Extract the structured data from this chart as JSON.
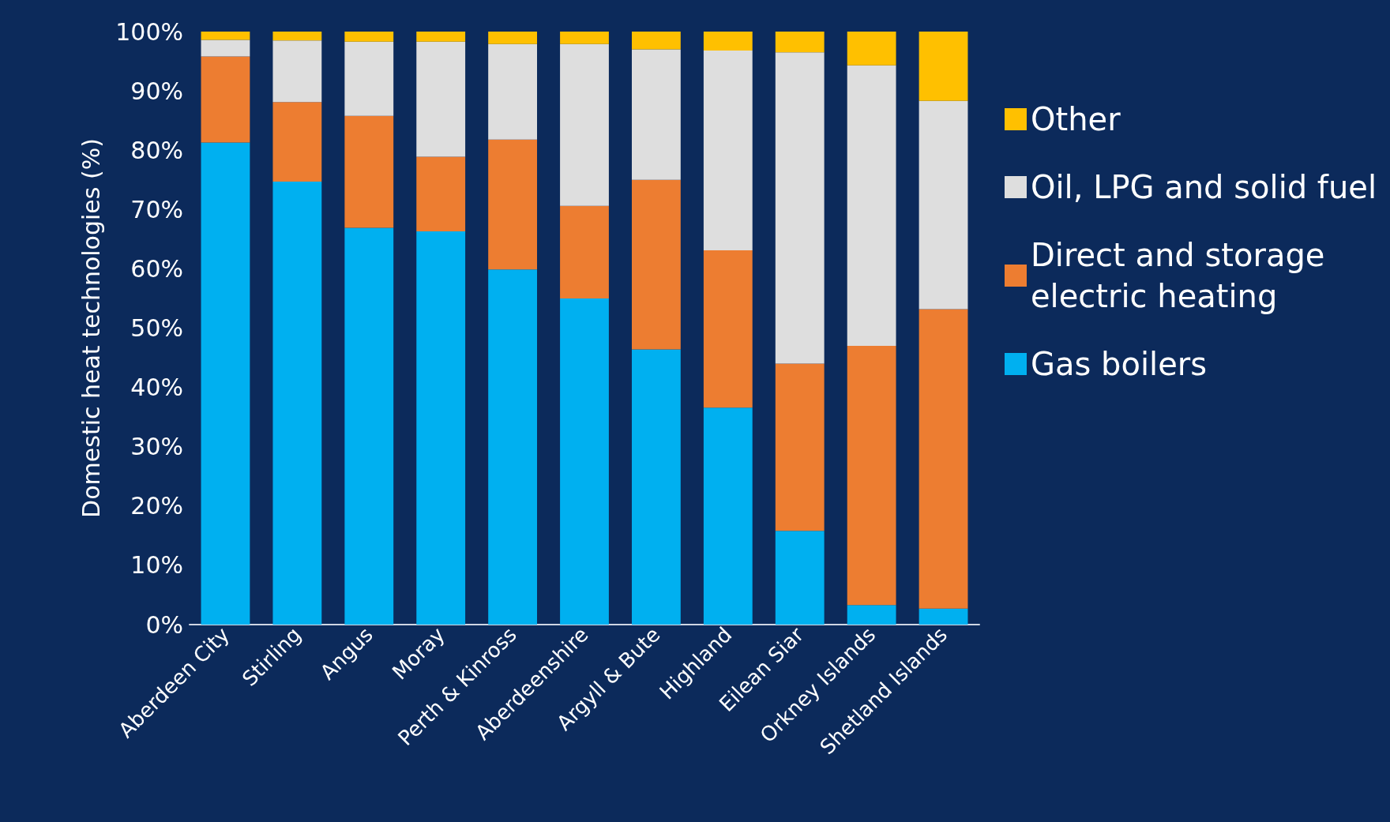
{
  "chart_data": {
    "type": "bar",
    "stacked": true,
    "ylabel": "Domestic heat technologies (%)",
    "categories": [
      "Aberdeen City",
      "Stirling",
      "Angus",
      "Moray",
      "Perth & Kinross",
      "Aberdeenshire",
      "Argyll & Bute",
      "Highland",
      "Eilean Siar",
      "Orkney Islands",
      "Shetland Islands"
    ],
    "series": [
      {
        "name": "Gas boilers",
        "color": "#00b0f0",
        "values": [
          81.3,
          74.7,
          66.9,
          66.3,
          59.9,
          55.0,
          46.4,
          36.6,
          15.8,
          3.3,
          2.7
        ]
      },
      {
        "name": "Direct and storage electric heating",
        "color": "#ed7d31",
        "values": [
          14.5,
          13.4,
          18.9,
          12.6,
          21.9,
          15.6,
          28.6,
          26.5,
          28.2,
          43.7,
          50.5
        ]
      },
      {
        "name": "Oil, LPG and solid fuel",
        "color": "#dedede",
        "values": [
          2.8,
          10.4,
          12.5,
          19.4,
          16.1,
          27.3,
          22.0,
          33.7,
          52.5,
          47.3,
          35.1
        ]
      },
      {
        "name": "Other",
        "color": "#ffc000",
        "values": [
          1.4,
          1.5,
          1.7,
          1.7,
          2.1,
          2.1,
          3.0,
          3.2,
          3.5,
          5.7,
          11.7
        ]
      }
    ],
    "ylim": [
      0,
      100
    ],
    "yticks": [
      {
        "value": 0,
        "label": "0%"
      },
      {
        "value": 10,
        "label": "10%"
      },
      {
        "value": 20,
        "label": "20%"
      },
      {
        "value": 30,
        "label": "30%"
      },
      {
        "value": 40,
        "label": "40%"
      },
      {
        "value": 50,
        "label": "50%"
      },
      {
        "value": 60,
        "label": "60%"
      },
      {
        "value": 70,
        "label": "70%"
      },
      {
        "value": 80,
        "label": "80%"
      },
      {
        "value": 90,
        "label": "90%"
      },
      {
        "value": 100,
        "label": "100%"
      }
    ],
    "grid": false,
    "legend": "right"
  }
}
